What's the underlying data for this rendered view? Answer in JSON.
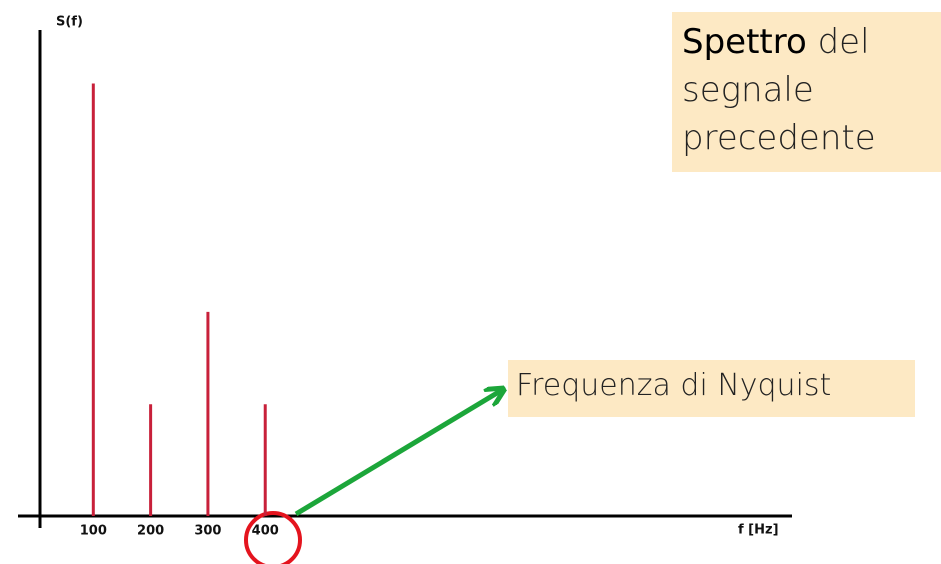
{
  "chart_data": {
    "type": "stem",
    "title": [
      "Spettro",
      "del segnale precedente"
    ],
    "annotation": "Frequenza di Nyquist",
    "y_label": "S(f)",
    "x_label": "f [Hz]",
    "x": [
      100,
      200,
      300,
      400
    ],
    "values": [
      89,
      23,
      42,
      23
    ],
    "color": "#c8203a",
    "xlim": [
      0,
      1300
    ],
    "xticks": [
      100,
      200,
      300,
      400
    ],
    "ylim": [
      0,
      100
    ]
  }
}
